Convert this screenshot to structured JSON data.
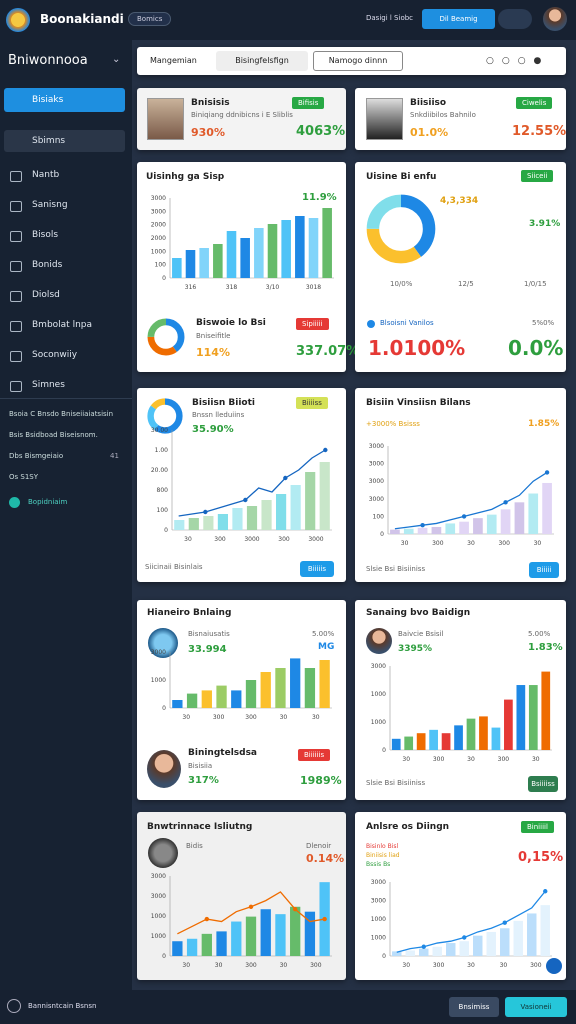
{
  "header": {
    "logo": "Boonakiandi",
    "badge": "Bomics",
    "user": "Dasigi l Siobc",
    "button": "Dil Beamig"
  },
  "sidebar": {
    "title": "Bniwonnooa",
    "active": "Bisiaks",
    "search": "Sbimns",
    "items": [
      "Nantb",
      "Sanisng",
      "Bisols",
      "Bonids",
      "Diolsd",
      "Bmbolat lnpa",
      "Soconwiiy",
      "Simnes"
    ],
    "notes": [
      "Bsoia C Bnsdo Bniseiiaiatsisin",
      "Bsis Bsidboad Biseisnom.",
      "Dbs Bismgeiaio",
      "Os S1SY"
    ],
    "note_badge": "41",
    "link": "Bopidniaim"
  },
  "toolbar": {
    "tabs": [
      "Mangemian",
      "Bisingfelsfign",
      "Namogo dinnn"
    ]
  },
  "cards": [
    {
      "title": "Bnisisis",
      "subtitle": "Biniqiang ddnibicns i E Sliblis",
      "value": "930%",
      "badge": "Bifisis",
      "value2": "4063%"
    },
    {
      "title": "Biisiiso",
      "subtitle": "Snkdiibilos Bahnilo",
      "value": "01.0%",
      "badge": "Ciwelis",
      "value2": "12.55%"
    },
    {
      "title": "Uisinhg ga Sisp",
      "value": "11.9%",
      "chart": {
        "ylabels": [
          "3000",
          "3000",
          "2000",
          "2000",
          "1000",
          "100",
          "0"
        ],
        "xlabels": [
          "316",
          "318",
          "3/10",
          "3018"
        ],
        "values": [
          20,
          28,
          30,
          34,
          47,
          40,
          50,
          54,
          58,
          62,
          60,
          70
        ],
        "colors": [
          "#4fc3f7",
          "#1e88e5",
          "#81d4fa",
          "#66bb6a"
        ],
        "ylim": [
          0,
          80
        ]
      },
      "donut": {
        "values": [
          40,
          35,
          25
        ],
        "colors": [
          "#1e88e5",
          "#ef6c00",
          "#66bb6a"
        ]
      },
      "sub_title": "Biswoie lo Bsi",
      "sub_text": "Bniseifitle",
      "sub_value": "114%",
      "badge": "Sipiiiii",
      "value2": "337.07%"
    },
    {
      "title": "Uisine Bi enfu",
      "pie_label": "4,3,334",
      "badge": "Siiceii",
      "value": "3.91%",
      "donut": {
        "values": [
          40,
          35,
          25
        ],
        "colors": [
          "#1e88e5",
          "#fbc02d",
          "#80deea"
        ]
      },
      "xlabels": [
        "10/0%",
        "12/5",
        "1/0/15"
      ],
      "sub_title": "Blsoisni Vanilos",
      "sub_value": "5%0%",
      "big1": "1.0100%",
      "big2": "0.0%"
    },
    {
      "title": "Bisiisn Biioti",
      "subtitle": "Bnssn lleduiins",
      "value": "35.90%",
      "badge": "Biiiiss",
      "donut": {
        "values": [
          60,
          25,
          15
        ],
        "colors": [
          "#1e88e5",
          "#4fc3f7",
          "#fbc02d"
        ]
      },
      "chart": {
        "ylabels": [
          "30.00",
          "1.00",
          "20.00",
          "800",
          "100",
          "0"
        ],
        "xlabels": [
          "30",
          "300",
          "3000",
          "300",
          "3000"
        ],
        "values": [
          10,
          12,
          14,
          16,
          22,
          24,
          30,
          36,
          45,
          58,
          68
        ],
        "colors": [
          "#b2ebf2",
          "#a5d6a7",
          "#c8e6c9",
          "#80deea"
        ],
        "line": [
          14,
          16,
          18,
          22,
          26,
          30,
          42,
          38,
          52,
          60,
          72,
          80
        ],
        "line_color": "#1565c0",
        "ylim": [
          0,
          100
        ]
      },
      "footer": "Siicinaii Bisinlais",
      "button": "Biiiiis"
    },
    {
      "title": "Bisiin Vinsiisn Bilans",
      "subtitle": "+3000% Bsisss",
      "value": "1.85%",
      "chart": {
        "ylabels": [
          "3000",
          "3000",
          "3000",
          "3000",
          "100",
          "0"
        ],
        "xlabels": [
          "30",
          "300",
          "30",
          "300",
          "30"
        ],
        "values": [
          5,
          6,
          7,
          8,
          12,
          14,
          18,
          22,
          28,
          36,
          46,
          58
        ],
        "colors": [
          "#d1c4e9",
          "#b2ebf2",
          "#e1d5f5"
        ],
        "line": [
          6,
          8,
          10,
          12,
          16,
          20,
          24,
          28,
          36,
          44,
          60,
          70
        ],
        "line_color": "#1976d2",
        "ylim": [
          0,
          100
        ]
      },
      "footer": "Slsie Bsi Bisiiniss",
      "button": "Biiiii"
    },
    {
      "title": "Hianeiro Bnlaing",
      "subtitle": "Bisnaiusatis",
      "value": "33.994",
      "value_small": "5.00%",
      "tag": "MG",
      "chart": {
        "ylabels": [
          "3000",
          "1000",
          "0"
        ],
        "xlabels": [
          "30",
          "300",
          "300",
          "30",
          "30"
        ],
        "values": [
          10,
          18,
          22,
          28,
          22,
          35,
          45,
          50,
          62,
          50,
          60
        ],
        "colors": [
          "#1e88e5",
          "#66bb6a",
          "#fbc02d",
          "#9ccc65"
        ],
        "ylim": [
          0,
          70
        ]
      },
      "sub_title": "Biningtelsdsa",
      "sub_text": "Bisisiia",
      "sub_value": "317%",
      "badge": "Biiiiiis",
      "value2": "1989%"
    },
    {
      "title": "Sanaing bvo Baidign",
      "subtitle": "Baivcie Bsisil",
      "value": "3395%",
      "value_small": "5.00%",
      "value2": "1.83%",
      "chart": {
        "ylabels": [
          "3000",
          "1000",
          "1000",
          "0"
        ],
        "xlabels": [
          "30",
          "300",
          "30",
          "300",
          "30"
        ],
        "values": [
          10,
          12,
          15,
          18,
          15,
          22,
          28,
          30,
          20,
          45,
          58,
          58,
          70
        ],
        "colors": [
          "#1e88e5",
          "#66bb6a",
          "#ef6c00",
          "#4fc3f7",
          "#e53935"
        ],
        "ylim": [
          0,
          75
        ]
      },
      "footer": "Slsie Bsi Bisiiniss",
      "button": "Bsiiiiss"
    },
    {
      "title": "Bnwtrinnace Isliutng",
      "subtitle": "Bidis",
      "value_small": "Dlenoir",
      "value": "0.14%",
      "chart": {
        "ylabels": [
          "3000",
          "3000",
          "1000",
          "1000",
          "0"
        ],
        "xlabels": [
          "30",
          "30",
          "300",
          "30",
          "300"
        ],
        "values": [
          12,
          14,
          18,
          20,
          28,
          32,
          38,
          34,
          40,
          36,
          60
        ],
        "colors": [
          "#1e88e5",
          "#4fc3f7",
          "#66bb6a"
        ],
        "line": [
          18,
          24,
          30,
          28,
          36,
          40,
          45,
          52,
          38,
          28,
          30
        ],
        "line_color": "#ef6c00",
        "ylim": [
          0,
          65
        ]
      },
      "badge": null
    },
    {
      "title": "Anlsre os Diingn",
      "badge": "Biniiiil",
      "legend": [
        "Bisinlo Bisl",
        "Biniisis liad",
        "Bssis Bs"
      ],
      "value": "0,15%",
      "chart": {
        "ylabels": [
          "3000",
          "3000",
          "1000",
          "1000",
          "0"
        ],
        "xlabels": [
          "30",
          "300",
          "30",
          "30",
          "300"
        ],
        "values": [
          5,
          6,
          8,
          10,
          14,
          16,
          22,
          26,
          30,
          38,
          46,
          55
        ],
        "colors": [
          "#bbdefb",
          "#e3f2fd"
        ],
        "line": [
          4,
          8,
          10,
          14,
          16,
          20,
          26,
          30,
          36,
          44,
          52,
          70
        ],
        "line_color": "#1e88e5",
        "ylim": [
          0,
          80
        ]
      }
    }
  ],
  "footer": {
    "text": "Bannisntcain Bsnsn",
    "buttons": [
      "Bnsimiss",
      "Vasioneii"
    ]
  }
}
